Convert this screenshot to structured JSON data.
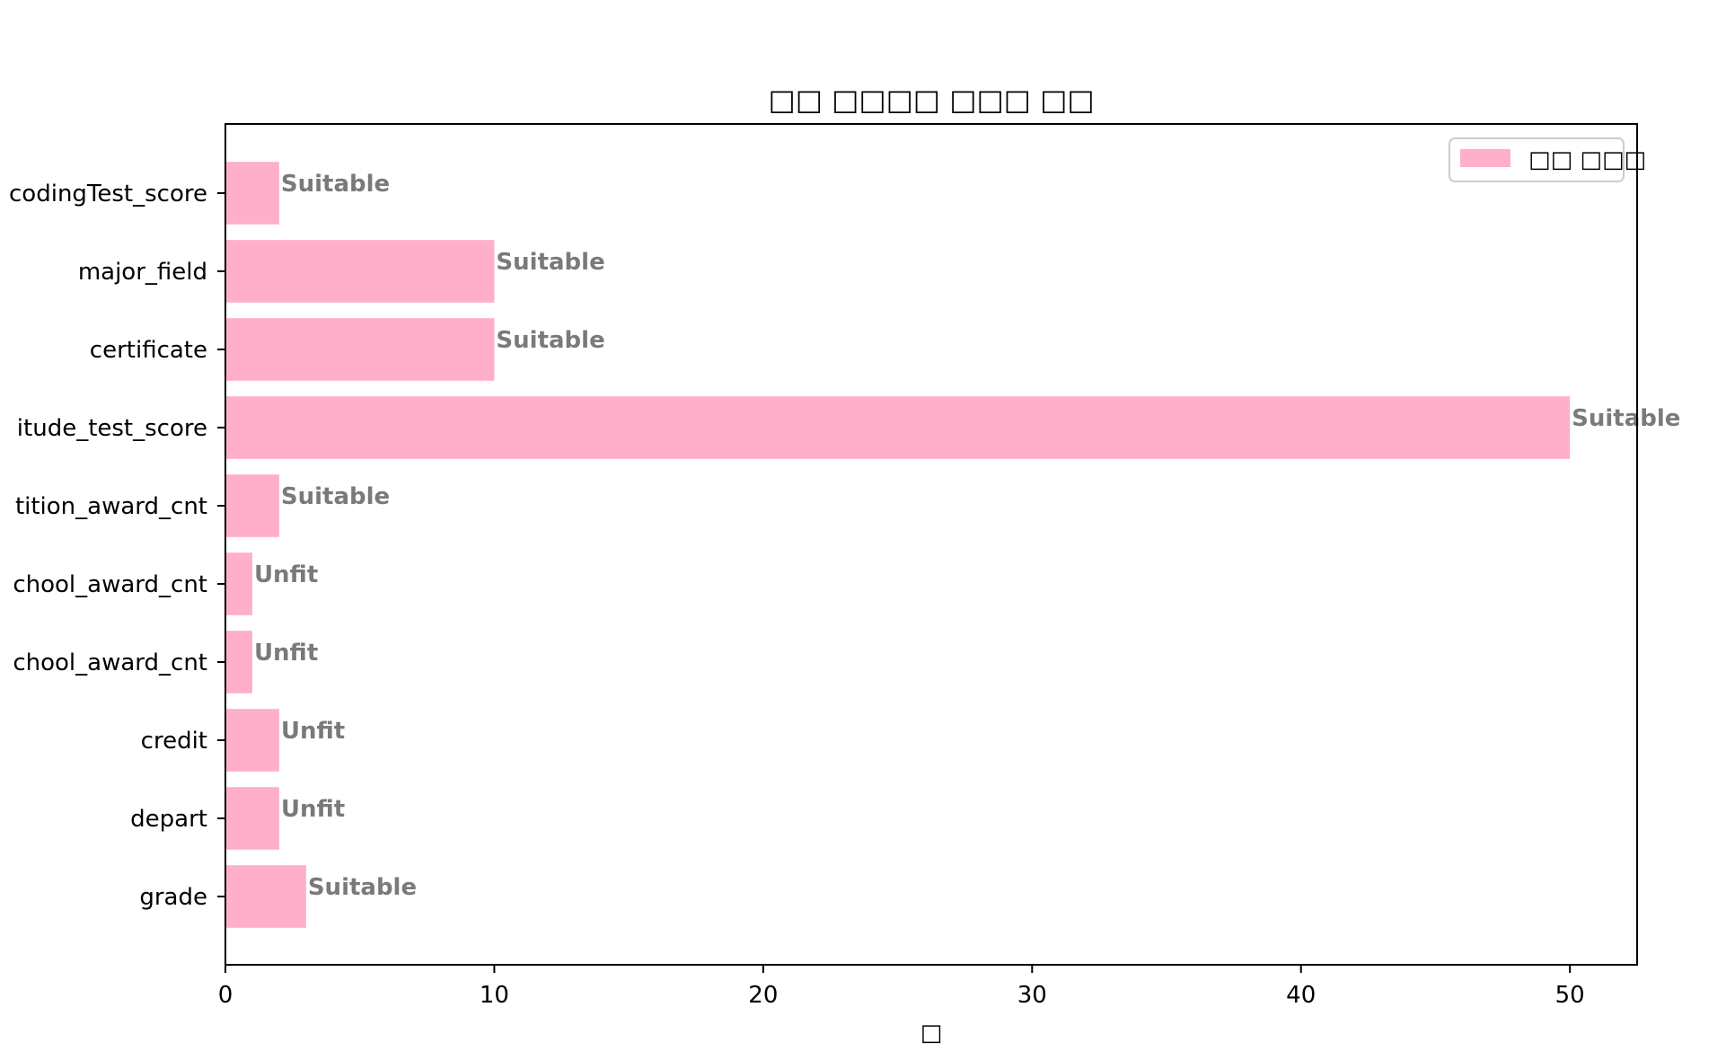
{
  "chart_data": {
    "type": "bar",
    "orientation": "horizontal",
    "title": "□□ □□□□ □□□ □□",
    "xlabel": "□",
    "ylabel": "",
    "xlim": [
      0,
      52.5
    ],
    "xticks": [
      0,
      10,
      20,
      30,
      40,
      50
    ],
    "grid": false,
    "legend": {
      "entries": [
        "□□ □□□"
      ],
      "placement": "top-right"
    },
    "bar_color": "#ffafc9",
    "categories": [
      "codingTest_score",
      "major_field",
      "certificate",
      "itude_test_score",
      "tition_award_cnt",
      "chool_award_cnt",
      "chool_award_cnt",
      "credit",
      "depart",
      "grade"
    ],
    "series": [
      {
        "name": "□□ □□□",
        "values": [
          2,
          10,
          10,
          50,
          2,
          1,
          1,
          2,
          2,
          3
        ]
      }
    ],
    "data_labels": [
      "Suitable",
      "Suitable",
      "Suitable",
      "Suitable",
      "Suitable",
      "Unfit",
      "Unfit",
      "Unfit",
      "Unfit",
      "Suitable"
    ]
  }
}
